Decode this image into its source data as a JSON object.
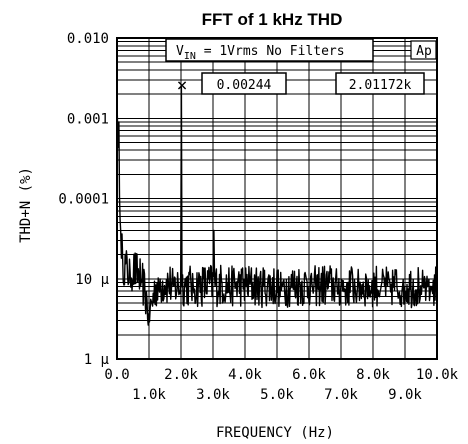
{
  "chart_data": {
    "type": "line",
    "title": "FFT of 1 kHz THD",
    "xlabel": "FREQUENCY (Hz)",
    "ylabel": "THD+N (%)",
    "xlim": [
      0,
      10000
    ],
    "ylim": [
      1e-06,
      0.01
    ],
    "y_scale": "log",
    "grid": true,
    "x_ticks_upper": [
      {
        "value": 0,
        "label": "0.0"
      },
      {
        "value": 2000,
        "label": "2.0k"
      },
      {
        "value": 4000,
        "label": "4.0k"
      },
      {
        "value": 6000,
        "label": "6.0k"
      },
      {
        "value": 8000,
        "label": "8.0k"
      },
      {
        "value": 10000,
        "label": "10.0k"
      }
    ],
    "x_ticks_lower": [
      {
        "value": 1000,
        "label": "1.0k"
      },
      {
        "value": 3000,
        "label": "3.0k"
      },
      {
        "value": 5000,
        "label": "5.0k"
      },
      {
        "value": 7000,
        "label": "7.0k"
      },
      {
        "value": 9000,
        "label": "9.0k"
      }
    ],
    "y_ticks": [
      {
        "value": 0.01,
        "label": "0.010"
      },
      {
        "value": 0.001,
        "label": "0.001"
      },
      {
        "value": 0.0001,
        "label": "0.0001"
      },
      {
        "value": 1e-05,
        "label": "10 µ"
      },
      {
        "value": 1e-06,
        "label": "1 µ"
      }
    ],
    "annotations": {
      "condition_prefix": "V",
      "condition_sub": "IN",
      "condition_rest": " = 1Vrms   No Filters",
      "brand": "Ap",
      "marker_symbol": "×",
      "marker_value": "0.00244",
      "marker_freq": "2.01172k",
      "marker_x": 2011.72,
      "marker_y": 0.00244
    },
    "spectrum": {
      "baseline_points": [
        [
          0,
          0.0015
        ],
        [
          30,
          0.0006
        ],
        [
          60,
          0.0002
        ],
        [
          100,
          5e-05
        ],
        [
          150,
          2.5e-05
        ],
        [
          200,
          1.6e-05
        ],
        [
          300,
          1.3e-05
        ],
        [
          400,
          1.2e-05
        ],
        [
          500,
          1.3e-05
        ],
        [
          700,
          1.1e-05
        ],
        [
          800,
          9e-06
        ],
        [
          900,
          6e-06
        ],
        [
          1000,
          3.5e-06
        ],
        [
          1100,
          5e-06
        ],
        [
          1200,
          8e-06
        ],
        [
          1500,
          9e-06
        ],
        [
          1800,
          8e-06
        ],
        [
          2000,
          8.5e-06
        ],
        [
          2500,
          8.2e-06
        ],
        [
          3000,
          8.5e-06
        ],
        [
          4000,
          8.3e-06
        ],
        [
          5000,
          8.2e-06
        ],
        [
          6000,
          8.4e-06
        ],
        [
          7000,
          8.2e-06
        ],
        [
          8000,
          8.3e-06
        ],
        [
          9000,
          8.2e-06
        ],
        [
          10000,
          8.2e-06
        ]
      ],
      "peaks": [
        {
          "freq": 50,
          "value": 0.0009
        },
        {
          "freq": 2011.72,
          "value": 0.00244
        },
        {
          "freq": 3020,
          "value": 4e-05
        }
      ]
    }
  }
}
